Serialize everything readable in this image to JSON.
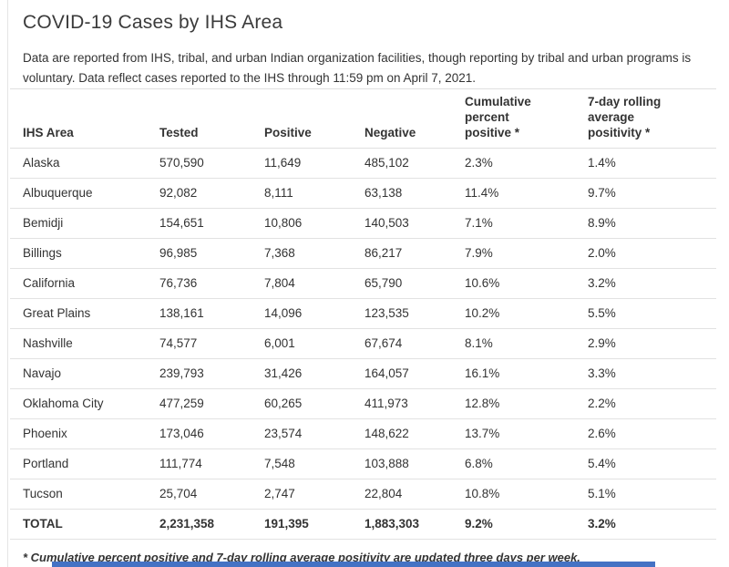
{
  "colors": {
    "accent_bar": "#4472c4",
    "table_border": "#dfdfdf",
    "text": "#333333"
  },
  "page": {
    "title": "COVID-19 Cases by IHS Area",
    "intro": "Data are reported from IHS, tribal, and urban Indian organization facilities, though reporting by tribal and urban programs is voluntary. Data reflect cases reported to the IHS through 11:59 pm on April 7, 2021.",
    "footnote": "* Cumulative percent positive and 7-day rolling average positivity are updated three days per week."
  },
  "table": {
    "columns": [
      "IHS Area",
      "Tested",
      "Positive",
      "Negative",
      "Cumulative percent positive *",
      "7-day rolling average positivity *"
    ],
    "rows": [
      {
        "area": "Alaska",
        "tested": "570,590",
        "positive": "11,649",
        "negative": "485,102",
        "cum_pct": "2.3%",
        "rolling_pct": "1.4%"
      },
      {
        "area": "Albuquerque",
        "tested": "92,082",
        "positive": "8,111",
        "negative": "63,138",
        "cum_pct": "11.4%",
        "rolling_pct": "9.7%"
      },
      {
        "area": "Bemidji",
        "tested": "154,651",
        "positive": "10,806",
        "negative": "140,503",
        "cum_pct": "7.1%",
        "rolling_pct": "8.9%"
      },
      {
        "area": "Billings",
        "tested": "96,985",
        "positive": "7,368",
        "negative": "86,217",
        "cum_pct": "7.9%",
        "rolling_pct": "2.0%"
      },
      {
        "area": "California",
        "tested": "76,736",
        "positive": "7,804",
        "negative": "65,790",
        "cum_pct": "10.6%",
        "rolling_pct": "3.2%"
      },
      {
        "area": "Great Plains",
        "tested": "138,161",
        "positive": "14,096",
        "negative": "123,535",
        "cum_pct": "10.2%",
        "rolling_pct": "5.5%"
      },
      {
        "area": "Nashville",
        "tested": "74,577",
        "positive": "6,001",
        "negative": "67,674",
        "cum_pct": "8.1%",
        "rolling_pct": "2.9%"
      },
      {
        "area": "Navajo",
        "tested": "239,793",
        "positive": "31,426",
        "negative": "164,057",
        "cum_pct": "16.1%",
        "rolling_pct": "3.3%"
      },
      {
        "area": "Oklahoma City",
        "tested": "477,259",
        "positive": "60,265",
        "negative": "411,973",
        "cum_pct": "12.8%",
        "rolling_pct": "2.2%"
      },
      {
        "area": "Phoenix",
        "tested": "173,046",
        "positive": "23,574",
        "negative": "148,622",
        "cum_pct": "13.7%",
        "rolling_pct": "2.6%"
      },
      {
        "area": "Portland",
        "tested": "111,774",
        "positive": "7,548",
        "negative": "103,888",
        "cum_pct": "6.8%",
        "rolling_pct": "5.4%"
      },
      {
        "area": "Tucson",
        "tested": "25,704",
        "positive": "2,747",
        "negative": "22,804",
        "cum_pct": "10.8%",
        "rolling_pct": "5.1%"
      }
    ],
    "total": {
      "area": "TOTAL",
      "tested": "2,231,358",
      "positive": "191,395",
      "negative": "1,883,303",
      "cum_pct": "9.2%",
      "rolling_pct": "3.2%"
    }
  }
}
